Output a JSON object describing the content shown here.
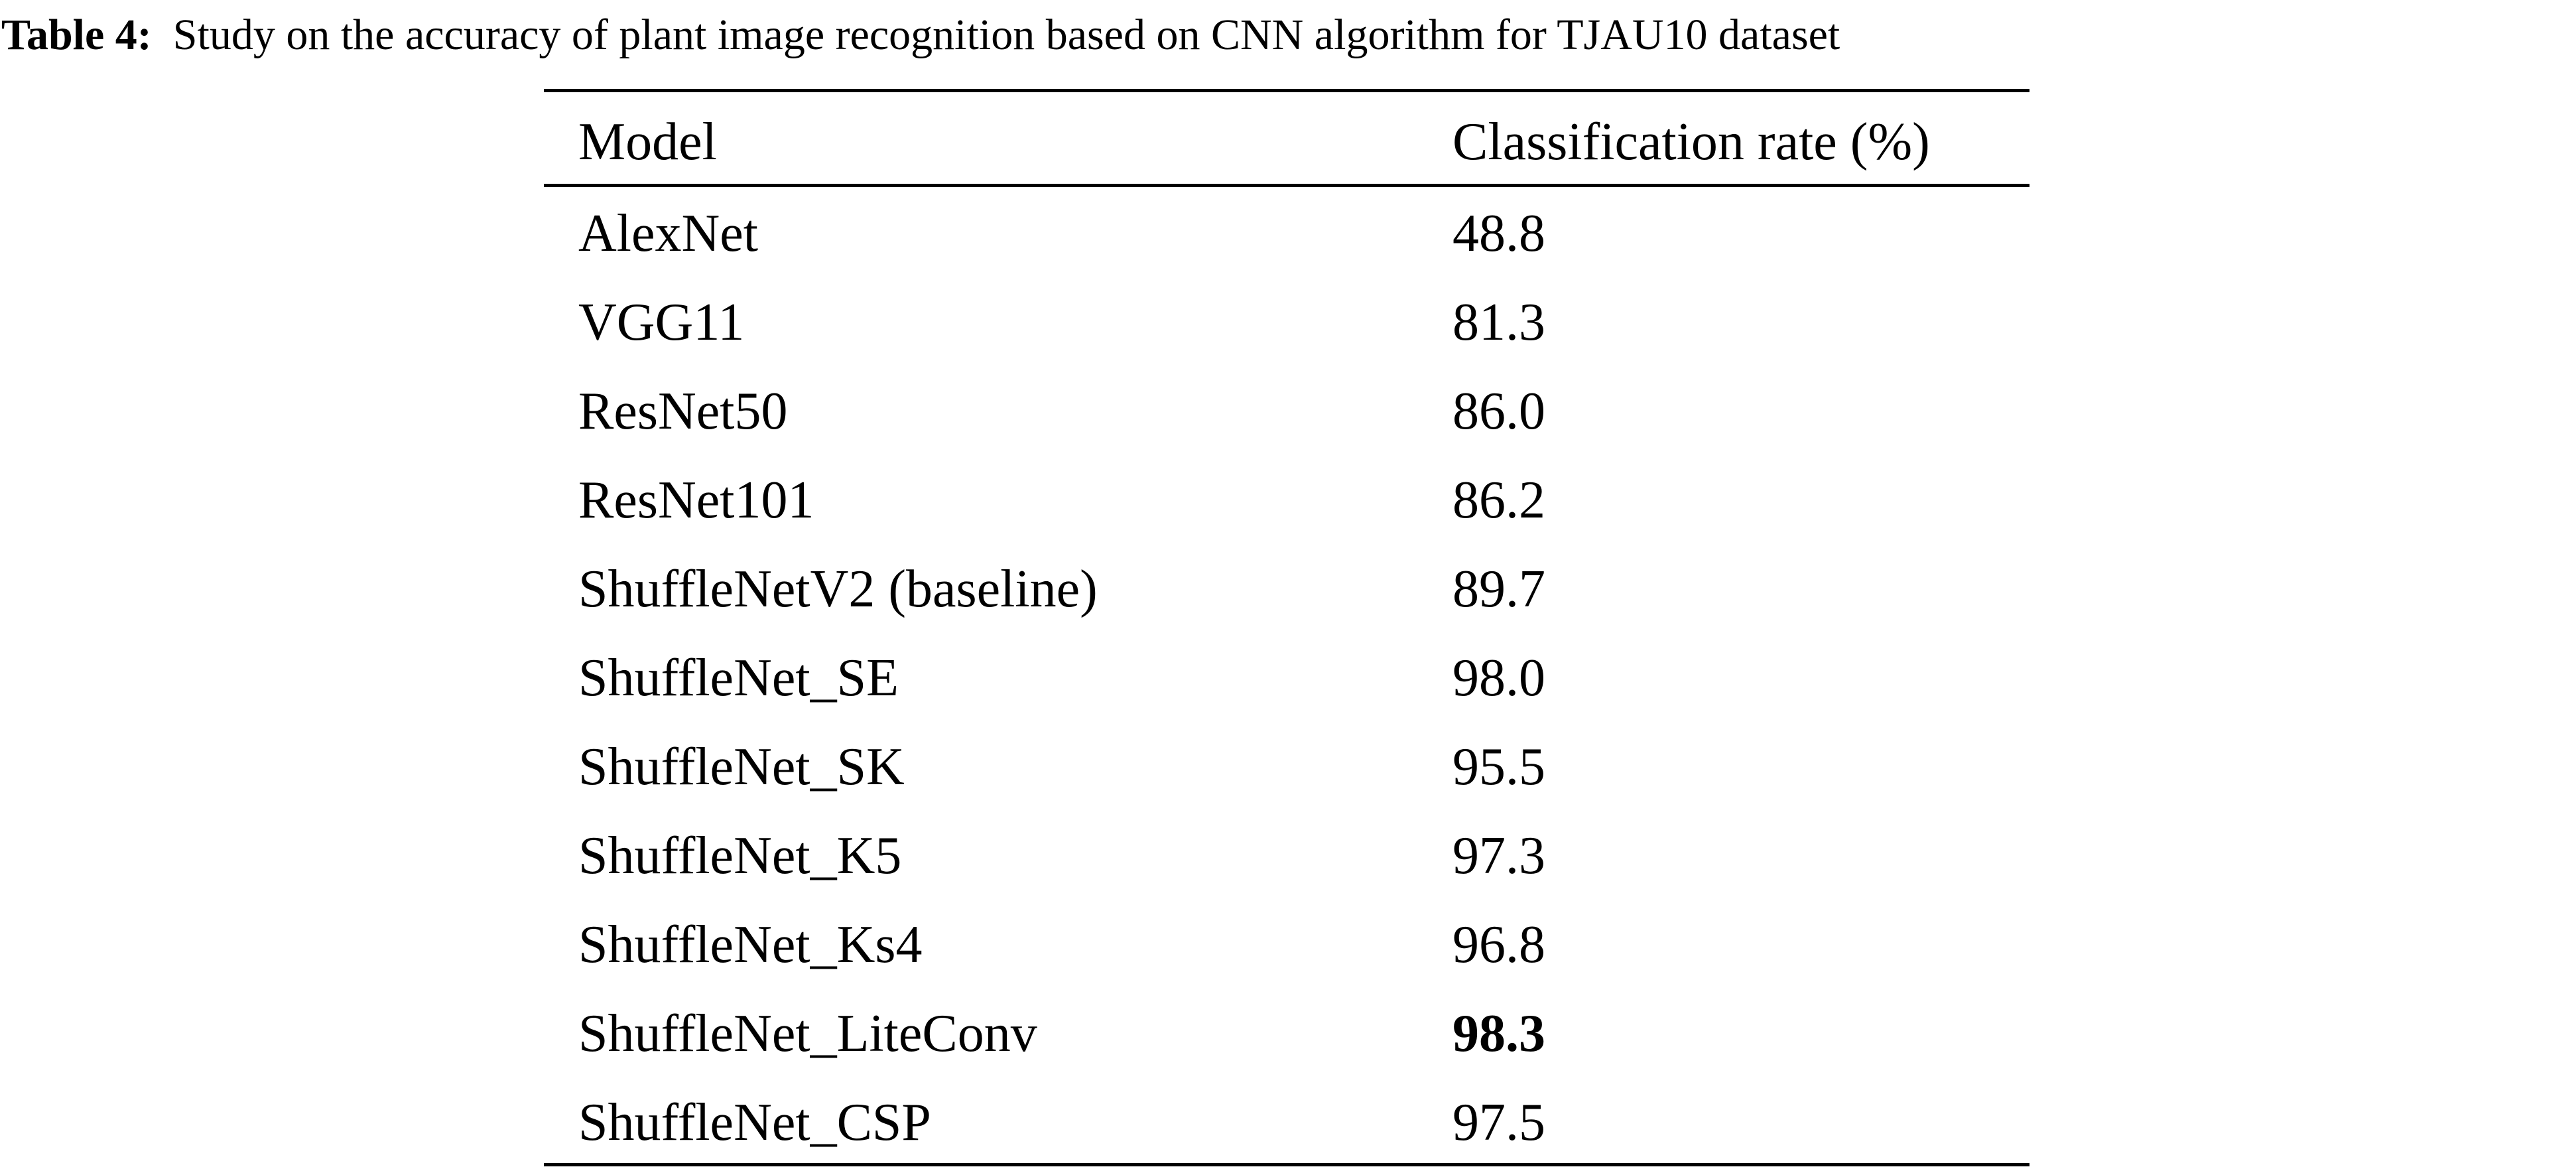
{
  "caption": {
    "label": "Table 4:",
    "text": "Study on the accuracy of plant image recognition based on CNN algorithm for TJAU10 dataset"
  },
  "table": {
    "headers": [
      "Model",
      "Classification rate (%)"
    ],
    "rows": [
      {
        "model": "AlexNet",
        "rate": "48.8",
        "bold": false
      },
      {
        "model": "VGG11",
        "rate": "81.3",
        "bold": false
      },
      {
        "model": "ResNet50",
        "rate": "86.0",
        "bold": false
      },
      {
        "model": "ResNet101",
        "rate": "86.2",
        "bold": false
      },
      {
        "model": "ShuffleNetV2 (baseline)",
        "rate": "89.7",
        "bold": false
      },
      {
        "model": "ShuffleNet_SE",
        "rate": "98.0",
        "bold": false
      },
      {
        "model": "ShuffleNet_SK",
        "rate": "95.5",
        "bold": false
      },
      {
        "model": "ShuffleNet_K5",
        "rate": "97.3",
        "bold": false
      },
      {
        "model": "ShuffleNet_Ks4",
        "rate": "96.8",
        "bold": false
      },
      {
        "model": "ShuffleNet_LiteConv",
        "rate": "98.3",
        "bold": true
      },
      {
        "model": "ShuffleNet_CSP",
        "rate": "97.5",
        "bold": false
      }
    ]
  }
}
